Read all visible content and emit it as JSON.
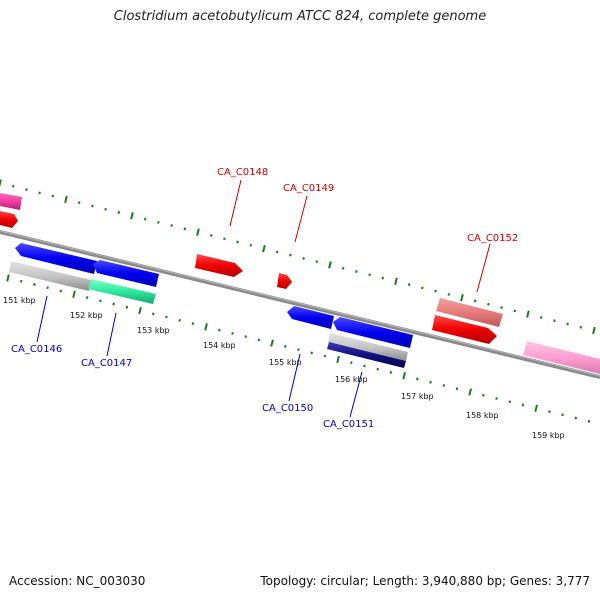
{
  "title": "Clostridium acetobutylicum ATCC 824, complete genome",
  "footer": {
    "accession": "Accession: NC_003030",
    "summary": "Topology: circular; Length: 3,940,880 bp; Genes: 3,777"
  },
  "colors": {
    "backbone": "#7a7a7a",
    "tick": "#1f7a1f",
    "forward_label": "#d40000",
    "reverse_label": "#0000c8"
  },
  "scale_labels": [
    "151 kbp",
    "152 kbp",
    "153 kbp",
    "154 kbp",
    "155 kbp",
    "156 kbp",
    "157 kbp",
    "158 kbp",
    "159 kbp"
  ],
  "gene_labels": {
    "ca_c0146": "CA_C0146",
    "ca_c0147": "CA_C0147",
    "ca_c0148": "CA_C0148",
    "ca_c0149": "CA_C0149",
    "ca_c0150": "CA_C0150",
    "ca_c0151": "CA_C0151",
    "ca_c0152": "CA_C0152"
  }
}
